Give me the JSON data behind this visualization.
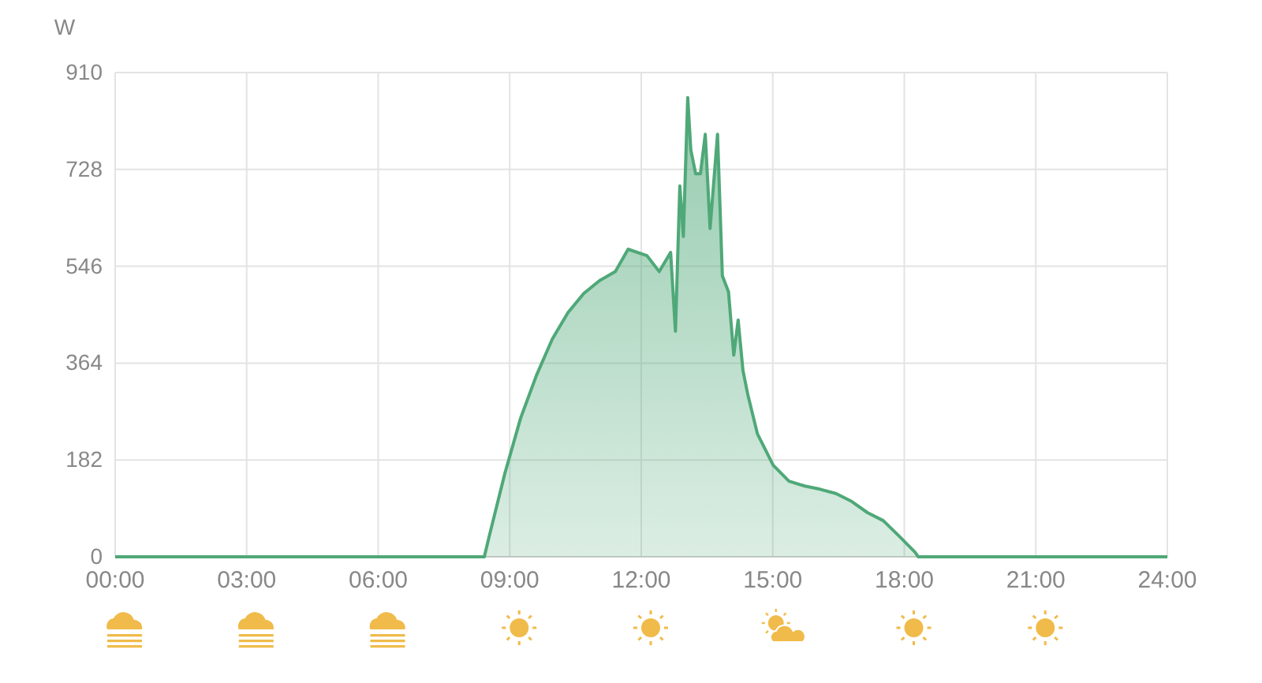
{
  "chart_data": {
    "type": "area",
    "ylabel": "W",
    "x": [
      0,
      8.42,
      8.53,
      8.89,
      9.25,
      9.61,
      9.97,
      10.33,
      10.69,
      11.05,
      11.41,
      11.7,
      12.13,
      12.41,
      12.67,
      12.78,
      12.88,
      12.96,
      13.06,
      13.13,
      13.24,
      13.35,
      13.46,
      13.57,
      13.74,
      13.85,
      13.99,
      14.11,
      14.21,
      14.32,
      14.43,
      14.65,
      15.01,
      15.37,
      15.73,
      16.08,
      16.44,
      16.8,
      17.16,
      17.52,
      17.88,
      18.24,
      18.32,
      24
    ],
    "series": [
      {
        "color": "#4fa878",
        "values": [
          0,
          0,
          38,
          157,
          261,
          341,
          409,
          459,
          495,
          519,
          536,
          578,
          566,
          536,
          572,
          424,
          697,
          602,
          863,
          765,
          720,
          720,
          794,
          617,
          794,
          528,
          498,
          379,
          445,
          350,
          305,
          231,
          172,
          142,
          133,
          127,
          119,
          104,
          83,
          68,
          39,
          9,
          0,
          0
        ]
      }
    ],
    "xlim": [
      0,
      24
    ],
    "xticks": [
      {
        "value": 0,
        "label": "00:00"
      },
      {
        "value": 3,
        "label": "03:00"
      },
      {
        "value": 6,
        "label": "06:00"
      },
      {
        "value": 9,
        "label": "09:00"
      },
      {
        "value": 12,
        "label": "12:00"
      },
      {
        "value": 15,
        "label": "15:00"
      },
      {
        "value": 18,
        "label": "18:00"
      },
      {
        "value": 21,
        "label": "21:00"
      },
      {
        "value": 24,
        "label": "24:00"
      }
    ],
    "ylim": [
      0,
      910
    ],
    "yticks": [
      0,
      182,
      364,
      546,
      728,
      910
    ],
    "grid": true
  }
}
